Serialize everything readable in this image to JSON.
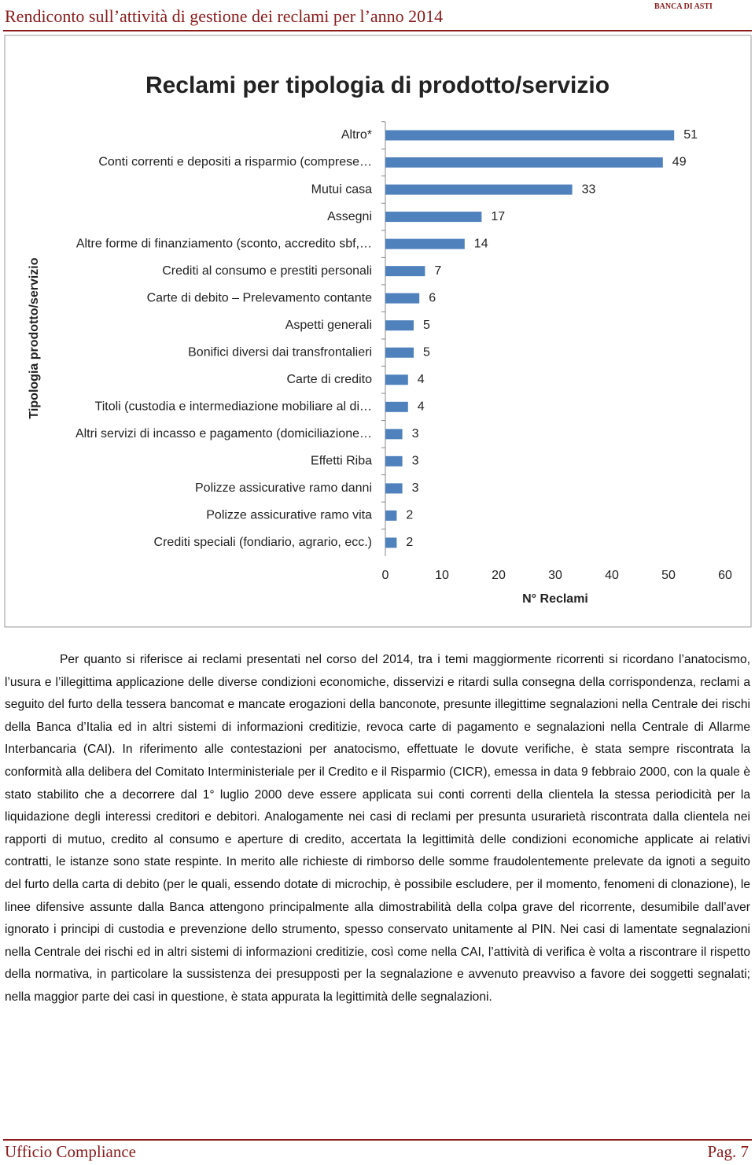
{
  "header": {
    "title": "Rendiconto sull’attività di gestione dei reclami per l’anno 2014",
    "logo": "BANCA DI ASTI"
  },
  "chart_data": {
    "type": "bar",
    "orientation": "horizontal",
    "title": "Reclami per tipologia di prodotto/servizio",
    "ylabel": "Tipologia prodotto/servizio",
    "xlabel": "N° Reclami",
    "categories": [
      "Altro*",
      "Conti correnti e depositi a risparmio (comprese…",
      "Mutui casa",
      "Assegni",
      "Altre forme di finanziamento (sconto, accredito sbf,…",
      "Crediti al consumo e prestiti personali",
      "Carte di debito – Prelevamento contante",
      "Aspetti generali",
      "Bonifici diversi dai transfrontalieri",
      "Carte di credito",
      "Titoli (custodia e intermediazione mobiliare al di…",
      "Altri servizi di incasso e pagamento (domiciliazione…",
      "Effetti Riba",
      "Polizze assicurative ramo danni",
      "Polizze assicurative ramo vita",
      "Crediti speciali (fondiario, agrario, ecc.)"
    ],
    "values": [
      51,
      49,
      33,
      17,
      14,
      7,
      6,
      5,
      5,
      4,
      4,
      3,
      3,
      3,
      2,
      2
    ],
    "color": "#4f81bd",
    "xlim": [
      0,
      60
    ],
    "xticks": [
      0,
      10,
      20,
      30,
      40,
      50,
      60
    ]
  },
  "body": {
    "paragraph": "Per quanto si riferisce ai reclami presentati nel corso del 2014, tra i temi maggiormente ricorrenti si ricordano l’anatocismo, l’usura e l’illegittima applicazione delle diverse condizioni economiche, disservizi e ritardi sulla consegna della corrispondenza, reclami a seguito del furto della tessera bancomat e mancate erogazioni della banconote, presunte illegittime segnalazioni nella Centrale dei rischi della Banca d’Italia ed in altri sistemi di informazioni creditizie, revoca carte di pagamento e segnalazioni nella Centrale di Allarme Interbancaria (CAI). In riferimento alle contestazioni per anatocismo, effettuate le dovute verifiche, è stata sempre riscontrata la conformità alla delibera del Comitato Interministeriale per il Credito e il Risparmio (CICR), emessa in data 9 febbraio 2000, con la quale è stato stabilito che a decorrere dal 1° luglio 2000 deve essere applicata sui conti correnti della clientela la stessa periodicità per la liquidazione degli interessi creditori e debitori. Analogamente nei casi di reclami per presunta usurarietà riscontrata dalla clientela nei rapporti di mutuo, credito al consumo e aperture di credito, accertata la legittimità delle condizioni economiche applicate ai relativi contratti, le istanze sono state respinte. In merito alle richieste di rimborso delle somme fraudolentemente prelevate da ignoti a seguito del furto della carta di debito (per le quali, essendo dotate di microchip, è possibile escludere, per il momento, fenomeni di clonazione), le linee difensive assunte dalla Banca attengono principalmente alla dimostrabilità della colpa grave del ricorrente, desumibile dall’aver ignorato i principi di custodia e prevenzione dello strumento, spesso conservato unitamente al PIN. Nei casi di lamentate segnalazioni nella Centrale dei rischi ed in altri sistemi di informazioni creditizie, così come nella CAI, l’attività di verifica è volta a riscontrare il rispetto della normativa, in particolare la sussistenza dei presupposti per la segnalazione e avvenuto preavviso a favore dei soggetti segnalati; nella maggior parte dei casi in questione, è stata appurata la legittimità delle segnalazioni."
  },
  "footer": {
    "left": "Ufficio Compliance",
    "right": "Pag. 7"
  }
}
